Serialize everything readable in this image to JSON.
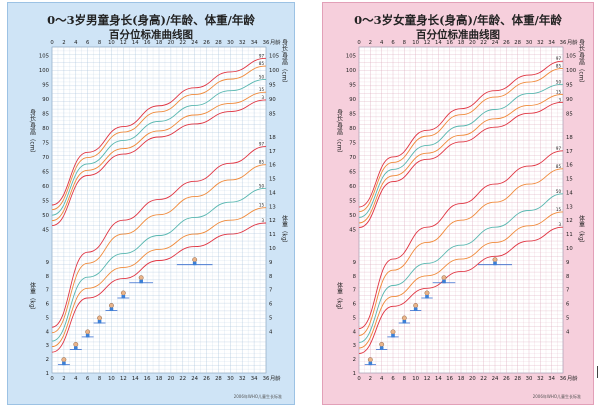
{
  "boys": {
    "title": "0～3岁男童身长(身高)/年龄、体重/年龄",
    "subtitle": "百分位标准曲线图",
    "footnote": "2006年WHO儿童生长标准",
    "length_label": "身长/身高（cm）",
    "weight_label": "体重（kg）",
    "colors": {
      "bg": "#cfe4f6",
      "grid": "#a9c3db",
      "p97": "#e03542",
      "p85": "#f08a3a",
      "p50": "#58b7b0",
      "p15": "#f08a3a",
      "p3": "#e03542"
    }
  },
  "girls": {
    "title": "0～3岁女童身长(身高)/年龄、体重/年龄",
    "subtitle": "百分位标准曲线图",
    "footnote": "2006年WHO儿童生长标准",
    "length_label": "身长/身高（cm）",
    "weight_label": "体重（kg）",
    "colors": {
      "bg": "#f6cfdc",
      "grid": "#dca9bc",
      "p97": "#e03542",
      "p85": "#f08a3a",
      "p50": "#58b7b0",
      "p15": "#f08a3a",
      "p3": "#e03542"
    }
  },
  "axis": {
    "age_unit": "月龄",
    "age_ticks": [
      "0",
      "2",
      "4",
      "6",
      "8",
      "10",
      "12",
      "14",
      "16",
      "18",
      "20",
      "22",
      "24",
      "26",
      "28",
      "30",
      "32",
      "34",
      "36"
    ],
    "length_ticks_left": [
      "45",
      "50",
      "55",
      "60",
      "65",
      "70",
      "75",
      "80",
      "85",
      "90",
      "95",
      "100",
      "105"
    ],
    "length_ticks_right": [
      "85",
      "90",
      "95",
      "100",
      "105"
    ],
    "weight_ticks_left": [
      "1",
      "2",
      "3",
      "4",
      "5",
      "6",
      "7",
      "8",
      "9"
    ],
    "weight_ticks_right": [
      "4",
      "5",
      "6",
      "7",
      "8",
      "9",
      "10",
      "11",
      "12",
      "13",
      "14",
      "15",
      "16",
      "17",
      "18"
    ],
    "percentile_labels": [
      "97",
      "85",
      "50",
      "15",
      "3"
    ]
  },
  "chart_data": [
    {
      "type": "line",
      "title": "0～3岁男童身长(身高)/年龄",
      "xlabel": "月龄",
      "ylabel": "身长/身高（cm）",
      "x": [
        0,
        6,
        12,
        18,
        24,
        30,
        36
      ],
      "xlim": [
        0,
        36
      ],
      "ylim": [
        42,
        108
      ],
      "series": [
        {
          "name": "97",
          "values": [
            53.4,
            71.6,
            80.5,
            87.7,
            93.9,
            99.4,
            104.1
          ]
        },
        {
          "name": "85",
          "values": [
            51.8,
            69.8,
            78.6,
            85.6,
            91.6,
            96.9,
            101.4
          ]
        },
        {
          "name": "50",
          "values": [
            49.9,
            67.6,
            75.7,
            82.3,
            87.8,
            92.9,
            96.8
          ]
        },
        {
          "name": "15",
          "values": [
            48.0,
            65.4,
            72.9,
            79.0,
            84.5,
            88.5,
            92.4
          ]
        },
        {
          "name": "3",
          "values": [
            46.3,
            63.6,
            71.0,
            76.9,
            81.4,
            85.7,
            89.7
          ]
        }
      ]
    },
    {
      "type": "line",
      "title": "0～3岁男童体重/年龄",
      "xlabel": "月龄",
      "ylabel": "体重（kg）",
      "x": [
        0,
        6,
        12,
        18,
        24,
        30,
        36
      ],
      "xlim": [
        0,
        36
      ],
      "ylim": [
        1,
        19
      ],
      "series": [
        {
          "name": "97",
          "values": [
            4.3,
            9.7,
            12.0,
            13.5,
            14.8,
            16.1,
            17.3
          ]
        },
        {
          "name": "85",
          "values": [
            3.9,
            8.9,
            11.0,
            12.4,
            13.7,
            14.9,
            16.0
          ]
        },
        {
          "name": "50",
          "values": [
            3.3,
            7.9,
            9.6,
            10.9,
            12.2,
            13.3,
            14.3
          ]
        },
        {
          "name": "15",
          "values": [
            2.9,
            7.1,
            8.6,
            9.9,
            11.0,
            12.0,
            12.9
          ]
        },
        {
          "name": "3",
          "values": [
            2.5,
            6.4,
            7.8,
            9.1,
            10.1,
            11.0,
            11.8
          ]
        }
      ]
    },
    {
      "type": "line",
      "title": "0～3岁女童身长(身高)/年龄",
      "xlabel": "月龄",
      "ylabel": "身长/身高（cm）",
      "x": [
        0,
        6,
        12,
        18,
        24,
        30,
        36
      ],
      "xlim": [
        0,
        36
      ],
      "ylim": [
        42,
        108
      ],
      "series": [
        {
          "name": "97",
          "values": [
            52.7,
            70.0,
            79.2,
            86.7,
            92.9,
            98.3,
            103.1
          ]
        },
        {
          "name": "85",
          "values": [
            51.1,
            68.1,
            77.2,
            84.6,
            90.7,
            95.9,
            100.6
          ]
        },
        {
          "name": "50",
          "values": [
            49.1,
            65.7,
            74.0,
            80.7,
            86.4,
            91.9,
            95.1
          ]
        },
        {
          "name": "15",
          "values": [
            47.2,
            63.5,
            71.3,
            77.5,
            83.2,
            87.8,
            91.6
          ]
        },
        {
          "name": "3",
          "values": [
            45.6,
            61.5,
            69.2,
            75.2,
            80.3,
            85.1,
            88.9
          ]
        }
      ]
    },
    {
      "type": "line",
      "title": "0～3岁女童体重/年龄",
      "xlabel": "月龄",
      "ylabel": "体重（kg）",
      "x": [
        0,
        6,
        12,
        18,
        24,
        30,
        36
      ],
      "xlim": [
        0,
        36
      ],
      "ylim": [
        1,
        19
      ],
      "series": [
        {
          "name": "97",
          "values": [
            4.2,
            9.2,
            11.5,
            13.2,
            14.6,
            15.9,
            17.0
          ]
        },
        {
          "name": "85",
          "values": [
            3.7,
            8.4,
            10.4,
            12.0,
            13.3,
            14.6,
            15.7
          ]
        },
        {
          "name": "50",
          "values": [
            3.2,
            7.3,
            8.9,
            10.2,
            11.5,
            12.7,
            13.9
          ]
        },
        {
          "name": "15",
          "values": [
            2.8,
            6.5,
            8.0,
            9.2,
            10.4,
            11.6,
            12.6
          ]
        },
        {
          "name": "3",
          "values": [
            2.4,
            5.8,
            7.1,
            8.3,
            9.4,
            10.5,
            11.5
          ]
        }
      ]
    }
  ]
}
